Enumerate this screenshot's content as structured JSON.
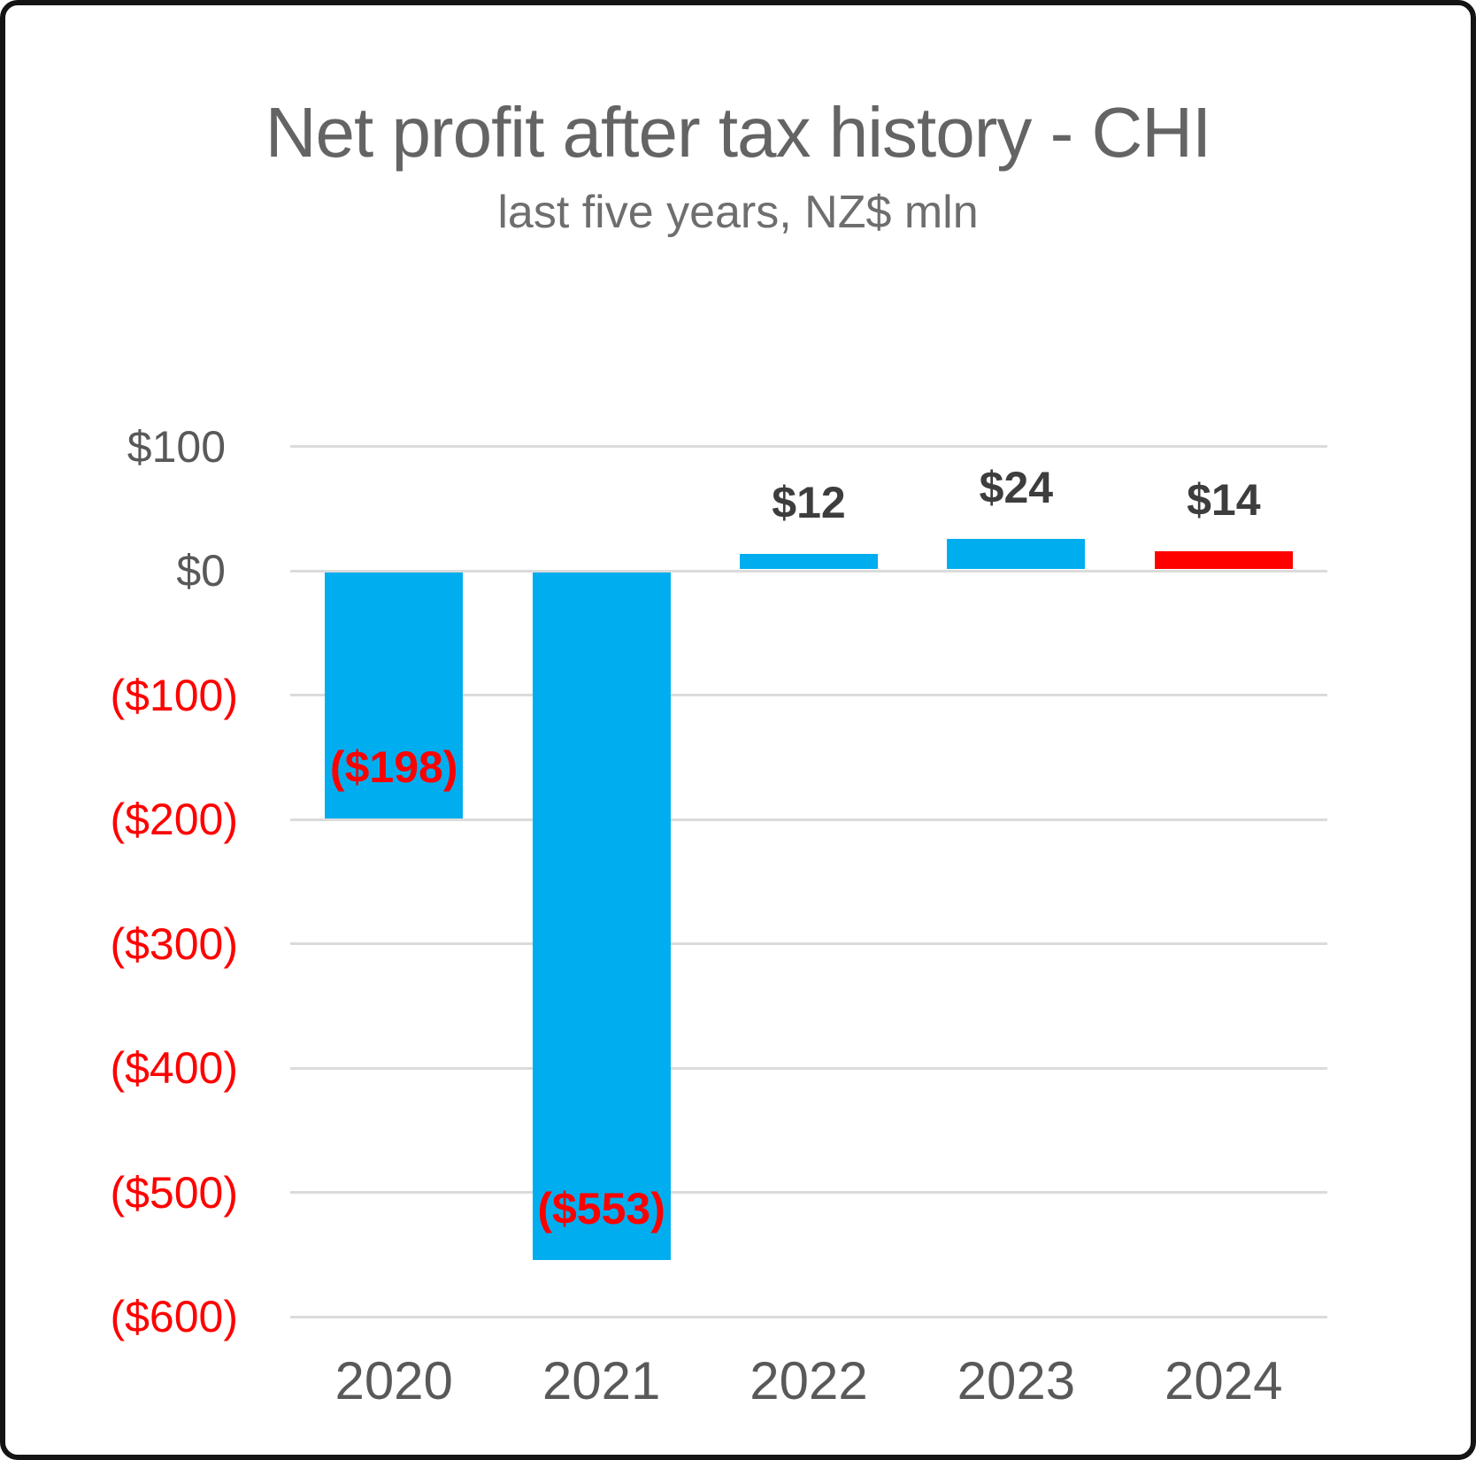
{
  "frame": {
    "border_color": "#141414",
    "background": "#FFFFFF"
  },
  "header": {
    "title": "Net profit after tax history - CHI",
    "subtitle": "last five years, NZ$ mln"
  },
  "chart_data": {
    "type": "bar",
    "title": "Net profit after tax history - CHI",
    "subtitle": "last five years, NZ$ mln",
    "categories": [
      "2020",
      "2021",
      "2022",
      "2023",
      "2024"
    ],
    "values": [
      -198,
      -553,
      12,
      24,
      14
    ],
    "data_labels": [
      "($198)",
      "($553)",
      "$12",
      "$24",
      "$14"
    ],
    "data_label_positions": [
      "inside-end",
      "inside-end",
      "outside-end",
      "outside-end",
      "outside-end"
    ],
    "bar_colors": [
      "#00AEEF",
      "#00AEEF",
      "#00AEEF",
      "#00AEEF",
      "#FF0000"
    ],
    "data_label_colors": [
      "#FF0000",
      "#FF0000",
      "#3D3D3D",
      "#3D3D3D",
      "#3D3D3D"
    ],
    "y_ticks": [
      {
        "value": 100,
        "label": "$100",
        "color": "#595959"
      },
      {
        "value": 0,
        "label": "$0",
        "color": "#595959"
      },
      {
        "value": -100,
        "label": "($100)",
        "color": "#FF0000"
      },
      {
        "value": -200,
        "label": "($200)",
        "color": "#FF0000"
      },
      {
        "value": -300,
        "label": "($300)",
        "color": "#FF0000"
      },
      {
        "value": -400,
        "label": "($400)",
        "color": "#FF0000"
      },
      {
        "value": -500,
        "label": "($500)",
        "color": "#FF0000"
      },
      {
        "value": -600,
        "label": "($600)",
        "color": "#FF0000"
      }
    ],
    "ylim": [
      -600,
      100
    ],
    "xlabel": "",
    "ylabel": "",
    "grid": true,
    "gridline_color": "#DBDBDB",
    "x_axis_label_color": "#595959",
    "legend": "none"
  }
}
